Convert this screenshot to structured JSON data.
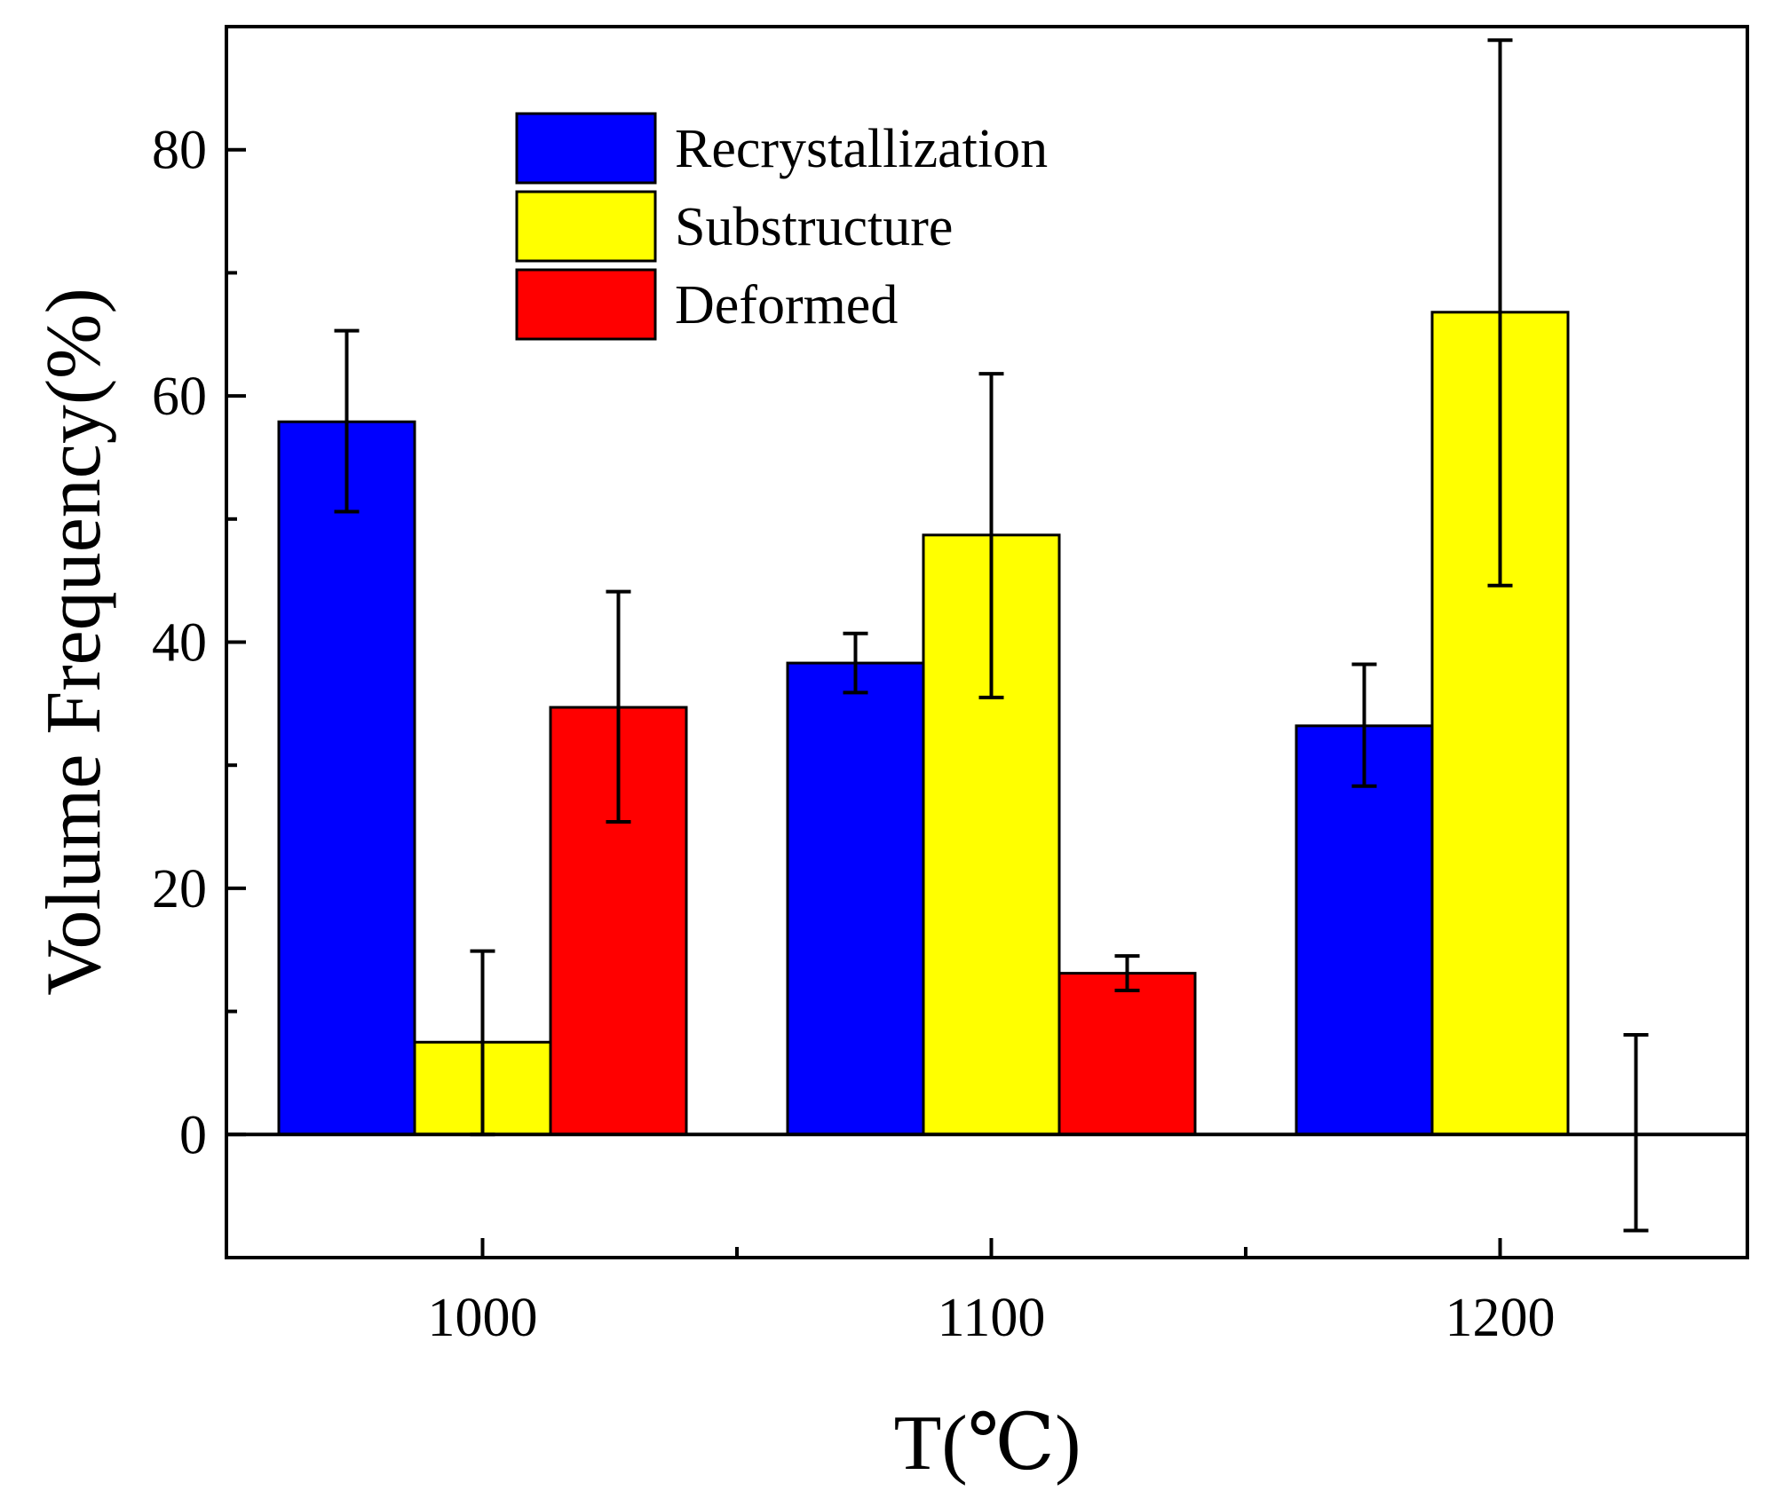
{
  "chart_data": {
    "type": "bar",
    "xlabel": "T(℃)",
    "ylabel": "Volume Frequency(%)",
    "categories": [
      "1000",
      "1100",
      "1200"
    ],
    "ylim": [
      -10,
      90
    ],
    "yticks": [
      0,
      20,
      40,
      60,
      80
    ],
    "legend_position": "top-left",
    "grid": false,
    "series": [
      {
        "name": "Recrystallization",
        "color": "#0000ff",
        "values": [
          57.9,
          38.3,
          33.2
        ],
        "err_low": [
          50.6,
          35.9,
          28.3
        ],
        "err_high": [
          65.3,
          40.7,
          38.2
        ]
      },
      {
        "name": "Substructure",
        "color": "#ffff00",
        "values": [
          7.5,
          48.7,
          66.8
        ],
        "err_low": [
          0.0,
          35.5,
          44.6
        ],
        "err_high": [
          14.9,
          61.8,
          88.9
        ]
      },
      {
        "name": "Deformed",
        "color": "#ff0000",
        "values": [
          34.7,
          13.1,
          0.0
        ],
        "err_low": [
          25.4,
          11.7,
          -7.8
        ],
        "err_high": [
          44.1,
          14.5,
          8.1
        ]
      }
    ]
  }
}
